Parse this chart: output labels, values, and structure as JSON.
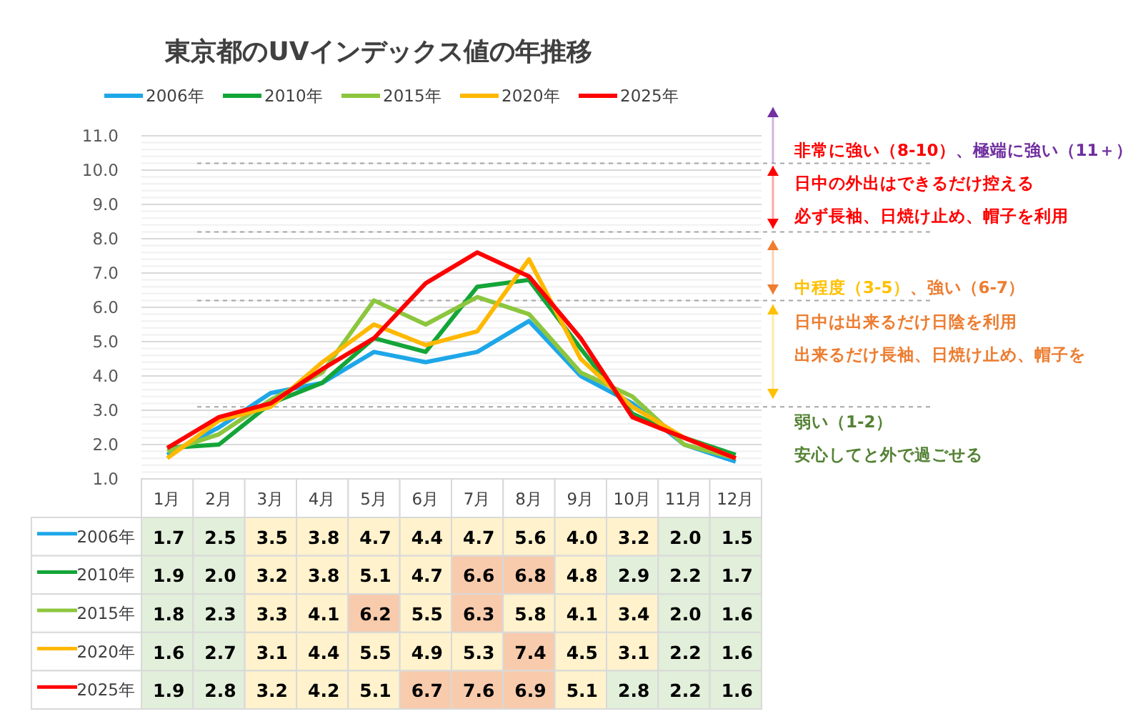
{
  "chart_data": [
    {
      "type": "line",
      "title": "東京都のUVインデックス値の年推移",
      "categories": [
        null,
        null,
        null,
        null,
        null,
        null,
        null,
        null,
        null,
        null,
        null,
        null
      ],
      "series": [
        {
          "name": "2006年",
          "color": "#1ea7e8",
          "values": [
            1.7,
            2.5,
            3.5,
            3.8,
            4.7,
            4.4,
            4.7,
            5.6,
            4.0,
            3.2,
            2.0,
            1.5
          ]
        },
        {
          "name": "2010年",
          "color": "#13a538",
          "values": [
            1.9,
            2.0,
            3.2,
            3.8,
            5.1,
            4.7,
            6.6,
            6.8,
            4.8,
            2.9,
            2.2,
            1.7
          ]
        },
        {
          "name": "2015年",
          "color": "#8cc63e",
          "values": [
            1.8,
            2.3,
            3.3,
            4.1,
            6.2,
            5.5,
            6.3,
            5.8,
            4.1,
            3.4,
            2.0,
            1.6
          ]
        },
        {
          "name": "2020年",
          "color": "#ffb800",
          "values": [
            1.6,
            2.7,
            3.1,
            4.4,
            5.5,
            4.9,
            5.3,
            7.4,
            4.5,
            3.1,
            2.2,
            1.6
          ]
        },
        {
          "name": "2025年",
          "color": "#ff0000",
          "values": [
            1.9,
            2.8,
            3.2,
            4.2,
            5.1,
            6.7,
            7.6,
            6.9,
            5.1,
            2.8,
            2.2,
            1.6
          ]
        }
      ],
      "ylim": [
        1,
        11
      ],
      "yticks": [
        {
          "value": 1,
          "label": "1.0"
        },
        {
          "value": 2,
          "label": "2.0"
        },
        {
          "value": 3,
          "label": "3.0"
        },
        {
          "value": 4,
          "label": "4.0"
        },
        {
          "value": 5,
          "label": "5.0"
        },
        {
          "value": 6,
          "label": "6.0"
        },
        {
          "value": 7,
          "label": "7.0"
        },
        {
          "value": 8,
          "label": "8.0"
        },
        {
          "value": 9,
          "label": "9.0"
        },
        {
          "value": 10,
          "label": "10.0"
        },
        {
          "value": 11,
          "label": "11.0"
        }
      ],
      "grid": "y",
      "legend": "top",
      "line_style": "solid",
      "marker": "none",
      "ref_lines": [
        {
          "axis": "y",
          "value": 3.1,
          "color": "#a6a6a6",
          "line_style": "dashed"
        },
        {
          "axis": "y",
          "value": 6.2,
          "color": "#a6a6a6",
          "line_style": "dashed"
        },
        {
          "axis": "y",
          "value": 8.2,
          "color": "#a6a6a6",
          "line_style": "dashed"
        },
        {
          "axis": "y",
          "value": 10.2,
          "color": "#a6a6a6",
          "line_style": "dashed"
        }
      ],
      "annotations": [
        "非常に強い（8-10）",
        "、極端に強い（11＋）",
        "日中の外出はできるだけ控える",
        "必ず長袖、日焼け止め、帽子を利用",
        "中程度（3-5）",
        "、強い（6-7）",
        "日中は出来るだけ日陰を利用",
        "出来るだけ長袖、日焼け止め、帽子を",
        "弱い（1-2）",
        "安心してと外で過ごせる"
      ]
    },
    {
      "type": "heatmap",
      "categories": [
        "1月",
        "2月",
        "3月",
        "4月",
        "5月",
        "6月",
        "7月",
        "8月",
        "9月",
        "10月",
        "11月",
        "12月"
      ],
      "y_categories": [
        "2006年",
        "2010年",
        "2015年",
        "2020年",
        "2025年"
      ],
      "cells": [
        [
          1.7,
          2.5,
          3.5,
          3.8,
          4.7,
          4.4,
          4.7,
          5.6,
          4.0,
          3.2,
          2.0,
          1.5
        ],
        [
          1.9,
          2.0,
          3.2,
          3.8,
          5.1,
          4.7,
          6.6,
          6.8,
          4.8,
          2.9,
          2.2,
          1.7
        ],
        [
          1.8,
          2.3,
          3.3,
          4.1,
          6.2,
          5.5,
          6.3,
          5.8,
          4.1,
          3.4,
          2.0,
          1.6
        ],
        [
          1.6,
          2.7,
          3.1,
          4.4,
          5.5,
          4.9,
          5.3,
          7.4,
          4.5,
          3.1,
          2.2,
          1.6
        ],
        [
          1.9,
          2.8,
          3.2,
          4.2,
          5.1,
          6.7,
          7.6,
          6.9,
          5.1,
          2.8,
          2.2,
          1.6
        ]
      ],
      "cell_labels": [
        [
          "1.7",
          "2.5",
          "3.5",
          "3.8",
          "4.7",
          "4.4",
          "4.7",
          "5.6",
          "4.0",
          "3.2",
          "2.0",
          "1.5"
        ],
        [
          "1.9",
          "2.0",
          "3.2",
          "3.8",
          "5.1",
          "4.7",
          "6.6",
          "6.8",
          "4.8",
          "2.9",
          "2.2",
          "1.7"
        ],
        [
          "1.8",
          "2.3",
          "3.3",
          "4.1",
          "6.2",
          "5.5",
          "6.3",
          "5.8",
          "4.1",
          "3.4",
          "2.0",
          "1.6"
        ],
        [
          "1.6",
          "2.7",
          "3.1",
          "4.4",
          "5.5",
          "4.9",
          "5.3",
          "7.4",
          "4.5",
          "3.1",
          "2.2",
          "1.6"
        ],
        [
          "1.9",
          "2.8",
          "3.2",
          "4.2",
          "5.1",
          "6.7",
          "7.6",
          "6.9",
          "5.1",
          "2.8",
          "2.2",
          "1.6"
        ]
      ],
      "data_labels": true
    }
  ]
}
